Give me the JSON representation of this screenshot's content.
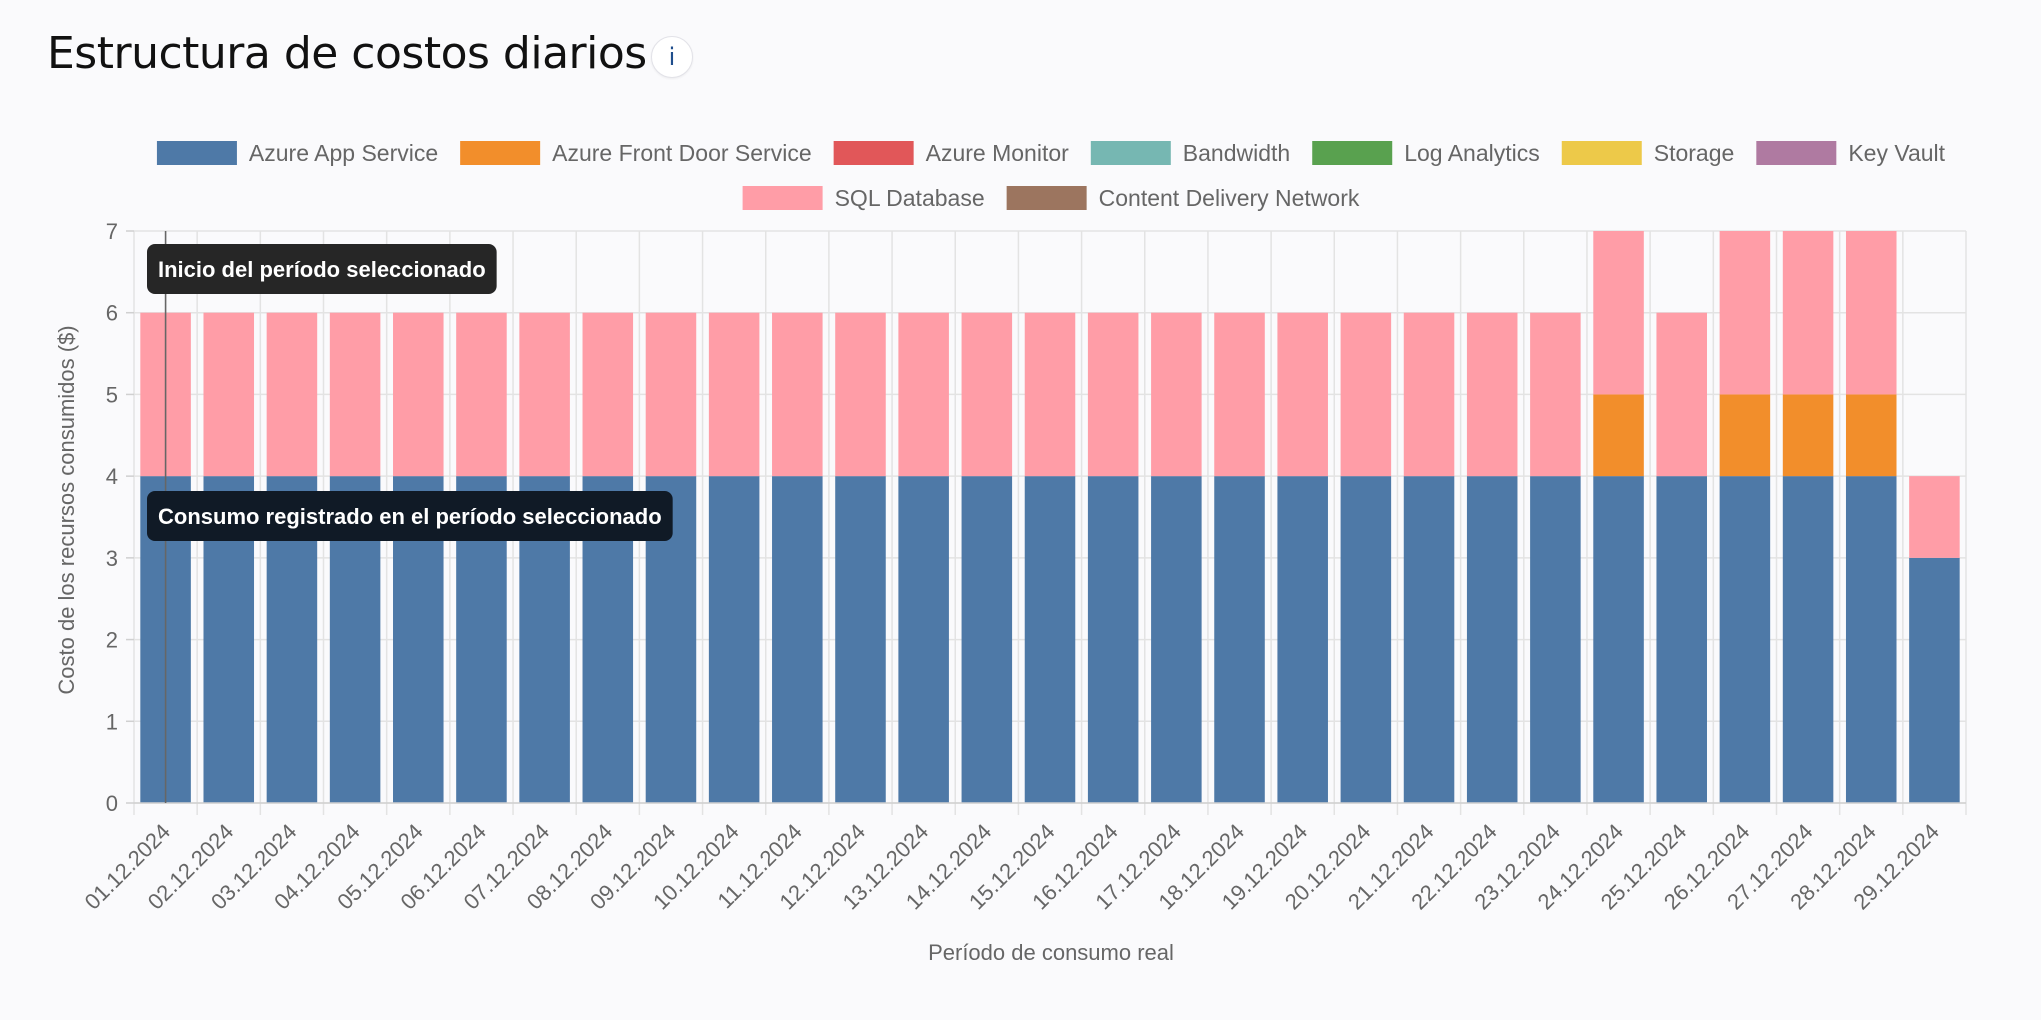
{
  "header": {
    "title": "Estructura de costos diarios",
    "info_icon": "info-icon",
    "info_glyph": "i"
  },
  "chart_data": {
    "type": "bar",
    "stacked": true,
    "title": "",
    "xlabel": "Período de consumo real",
    "ylabel": "Costo de los recursos consumidos ($)",
    "ylim": [
      0,
      7
    ],
    "yticks": [
      0,
      1,
      2,
      3,
      4,
      5,
      6,
      7
    ],
    "grid": true,
    "legend_position": "top",
    "categories": [
      "01.12.2024",
      "02.12.2024",
      "03.12.2024",
      "04.12.2024",
      "05.12.2024",
      "06.12.2024",
      "07.12.2024",
      "08.12.2024",
      "09.12.2024",
      "10.12.2024",
      "11.12.2024",
      "12.12.2024",
      "13.12.2024",
      "14.12.2024",
      "15.12.2024",
      "16.12.2024",
      "17.12.2024",
      "18.12.2024",
      "19.12.2024",
      "20.12.2024",
      "21.12.2024",
      "22.12.2024",
      "23.12.2024",
      "24.12.2024",
      "25.12.2024",
      "26.12.2024",
      "27.12.2024",
      "28.12.2024",
      "29.12.2024"
    ],
    "series": [
      {
        "name": "Azure App Service",
        "color": "#4e79a7",
        "values": [
          4,
          4,
          4,
          4,
          4,
          4,
          4,
          4,
          4,
          4,
          4,
          4,
          4,
          4,
          4,
          4,
          4,
          4,
          4,
          4,
          4,
          4,
          4,
          4,
          4,
          4,
          4,
          4,
          3
        ]
      },
      {
        "name": "Azure Front Door Service",
        "color": "#f28e2b",
        "values": [
          0,
          0,
          0,
          0,
          0,
          0,
          0,
          0,
          0,
          0,
          0,
          0,
          0,
          0,
          0,
          0,
          0,
          0,
          0,
          0,
          0,
          0,
          0,
          1,
          0,
          1,
          1,
          1,
          0
        ]
      },
      {
        "name": "Azure Monitor",
        "color": "#e15759",
        "values": [
          0,
          0,
          0,
          0,
          0,
          0,
          0,
          0,
          0,
          0,
          0,
          0,
          0,
          0,
          0,
          0,
          0,
          0,
          0,
          0,
          0,
          0,
          0,
          0,
          0,
          0,
          0,
          0,
          0
        ]
      },
      {
        "name": "Bandwidth",
        "color": "#76b7b2",
        "values": [
          0,
          0,
          0,
          0,
          0,
          0,
          0,
          0,
          0,
          0,
          0,
          0,
          0,
          0,
          0,
          0,
          0,
          0,
          0,
          0,
          0,
          0,
          0,
          0,
          0,
          0,
          0,
          0,
          0
        ]
      },
      {
        "name": "Log Analytics",
        "color": "#59a14f",
        "values": [
          0,
          0,
          0,
          0,
          0,
          0,
          0,
          0,
          0,
          0,
          0,
          0,
          0,
          0,
          0,
          0,
          0,
          0,
          0,
          0,
          0,
          0,
          0,
          0,
          0,
          0,
          0,
          0,
          0
        ]
      },
      {
        "name": "Storage",
        "color": "#edc949",
        "values": [
          0,
          0,
          0,
          0,
          0,
          0,
          0,
          0,
          0,
          0,
          0,
          0,
          0,
          0,
          0,
          0,
          0,
          0,
          0,
          0,
          0,
          0,
          0,
          0,
          0,
          0,
          0,
          0,
          0
        ]
      },
      {
        "name": "Key Vault",
        "color": "#af7aa1",
        "values": [
          0,
          0,
          0,
          0,
          0,
          0,
          0,
          0,
          0,
          0,
          0,
          0,
          0,
          0,
          0,
          0,
          0,
          0,
          0,
          0,
          0,
          0,
          0,
          0,
          0,
          0,
          0,
          0,
          0
        ]
      },
      {
        "name": "SQL Database",
        "color": "#ff9da7",
        "values": [
          2,
          2,
          2,
          2,
          2,
          2,
          2,
          2,
          2,
          2,
          2,
          2,
          2,
          2,
          2,
          2,
          2,
          2,
          2,
          2,
          2,
          2,
          2,
          2,
          2,
          2,
          2,
          2,
          1
        ]
      },
      {
        "name": "Content Delivery Network",
        "color": "#9c755f",
        "values": [
          0,
          0,
          0,
          0,
          0,
          0,
          0,
          0,
          0,
          0,
          0,
          0,
          0,
          0,
          0,
          0,
          0,
          0,
          0,
          0,
          0,
          0,
          0,
          0,
          0,
          0,
          0,
          0,
          0
        ]
      }
    ],
    "annotations": [
      {
        "text": "Inicio del período seleccionado",
        "category": "01.12.2024",
        "anchor": "top"
      },
      {
        "text": "Consumo registrado en el período seleccionado",
        "category": "01.12.2024",
        "anchor": "middle"
      }
    ]
  }
}
